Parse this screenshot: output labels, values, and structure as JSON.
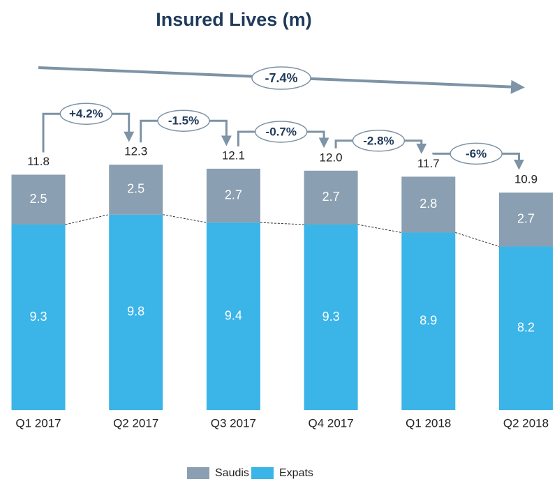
{
  "chart_data": {
    "type": "stacked_bar",
    "title": "Insured Lives (m)",
    "categories": [
      "Q1 2017",
      "Q2 2017",
      "Q3 2017",
      "Q4 2017",
      "Q1 2018",
      "Q2 2018"
    ],
    "series": [
      {
        "name": "Expats",
        "color": "#3bb4e8",
        "values": [
          9.3,
          9.8,
          9.4,
          9.3,
          8.9,
          8.2
        ]
      },
      {
        "name": "Saudis",
        "color": "#8a9fb1",
        "values": [
          2.5,
          2.5,
          2.7,
          2.7,
          2.8,
          2.7
        ]
      }
    ],
    "total_labels": [
      "11.8",
      "12.3",
      "12.1",
      "12.0",
      "11.7",
      "10.9"
    ],
    "changes": [
      "+4.2%",
      "-1.5%",
      "-0.7%",
      "-2.8%",
      "-6%"
    ],
    "overall_change": "-7.4%",
    "legend_order": [
      1,
      0
    ]
  }
}
